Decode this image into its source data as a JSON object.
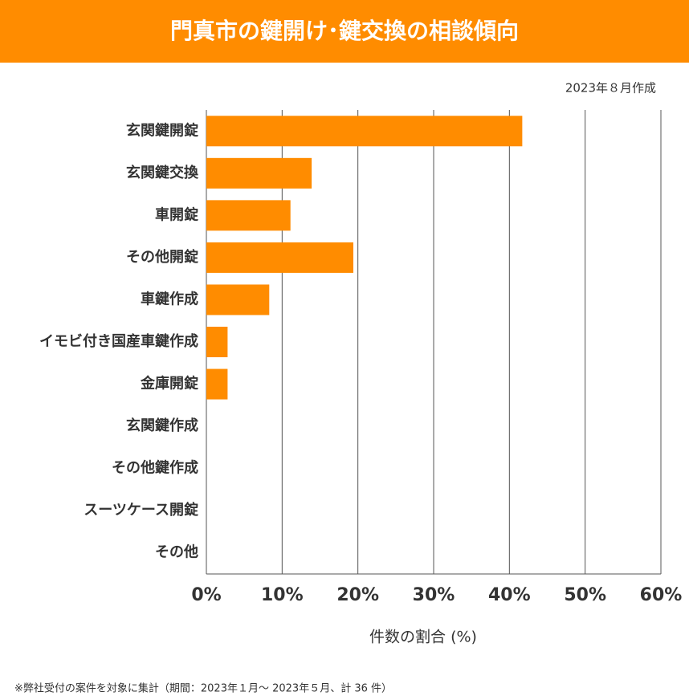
{
  "chart_data": {
    "type": "bar",
    "orientation": "horizontal",
    "title": "門真市の鍵開け･鍵交換の相談傾向",
    "subtitle": "2023年８月作成",
    "x_label": "件数の割合 (%)",
    "footnote": "※弊社受付の案件を対象に集計（期間：2023年１月～ 2023年５月、計 36 件）",
    "categories": [
      "玄関鍵開錠",
      "玄関鍵交換",
      "車開錠",
      "その他開錠",
      "車鍵作成",
      "イモビ付き国産車鍵作成",
      "金庫開錠",
      "玄関鍵作成",
      "その他鍵作成",
      "スーツケース開錠",
      "その他"
    ],
    "values": [
      41.7,
      13.9,
      11.1,
      19.4,
      8.3,
      2.8,
      2.8,
      0,
      0,
      0,
      0
    ],
    "color": "#ff8c00",
    "xlim": [
      0,
      60
    ],
    "xticks": [
      {
        "value": 0,
        "label": "0%"
      },
      {
        "value": 10,
        "label": "10%"
      },
      {
        "value": 20,
        "label": "20%"
      },
      {
        "value": 30,
        "label": "30%"
      },
      {
        "value": 40,
        "label": "40%"
      },
      {
        "value": 50,
        "label": "50%"
      },
      {
        "value": 60,
        "label": "60%"
      }
    ],
    "grid": true
  }
}
